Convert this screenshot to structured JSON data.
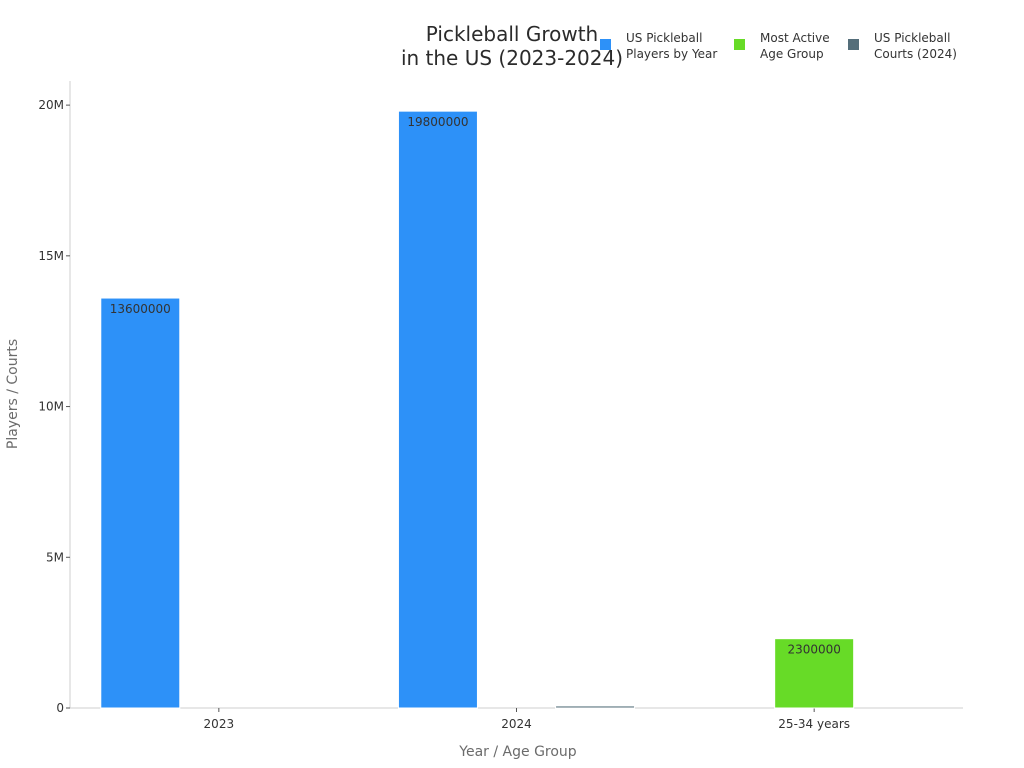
{
  "chart_data": {
    "type": "bar",
    "title_lines": [
      "Pickleball Growth",
      "in the US (2023-2024)"
    ],
    "xlabel": "Year / Age Group",
    "ylabel": "Players / Courts",
    "categories": [
      "2023",
      "2024",
      "25-34 years"
    ],
    "ylim": [
      0,
      20800000
    ],
    "yticks": [
      {
        "value": 0,
        "label": "0"
      },
      {
        "value": 5000000,
        "label": "5M"
      },
      {
        "value": 10000000,
        "label": "10M"
      },
      {
        "value": 15000000,
        "label": "15M"
      },
      {
        "value": 20000000,
        "label": "20M"
      }
    ],
    "grid": false,
    "legend_position": "top-right",
    "series": [
      {
        "name_lines": [
          "US Pickleball",
          "Players by Year"
        ],
        "color": "#2d91f8",
        "values": [
          13600000,
          19800000,
          null
        ],
        "labels": [
          "13600000",
          "19800000",
          null
        ]
      },
      {
        "name_lines": [
          "Most Active",
          "Age Group"
        ],
        "color": "#67db27",
        "values": [
          null,
          null,
          2300000
        ],
        "labels": [
          null,
          null,
          "2300000"
        ]
      },
      {
        "name_lines": [
          "US Pickleball",
          "Courts (2024)"
        ],
        "color": "#546e7a",
        "values": [
          null,
          68458,
          null
        ],
        "labels": [
          null,
          null,
          null
        ]
      }
    ]
  }
}
